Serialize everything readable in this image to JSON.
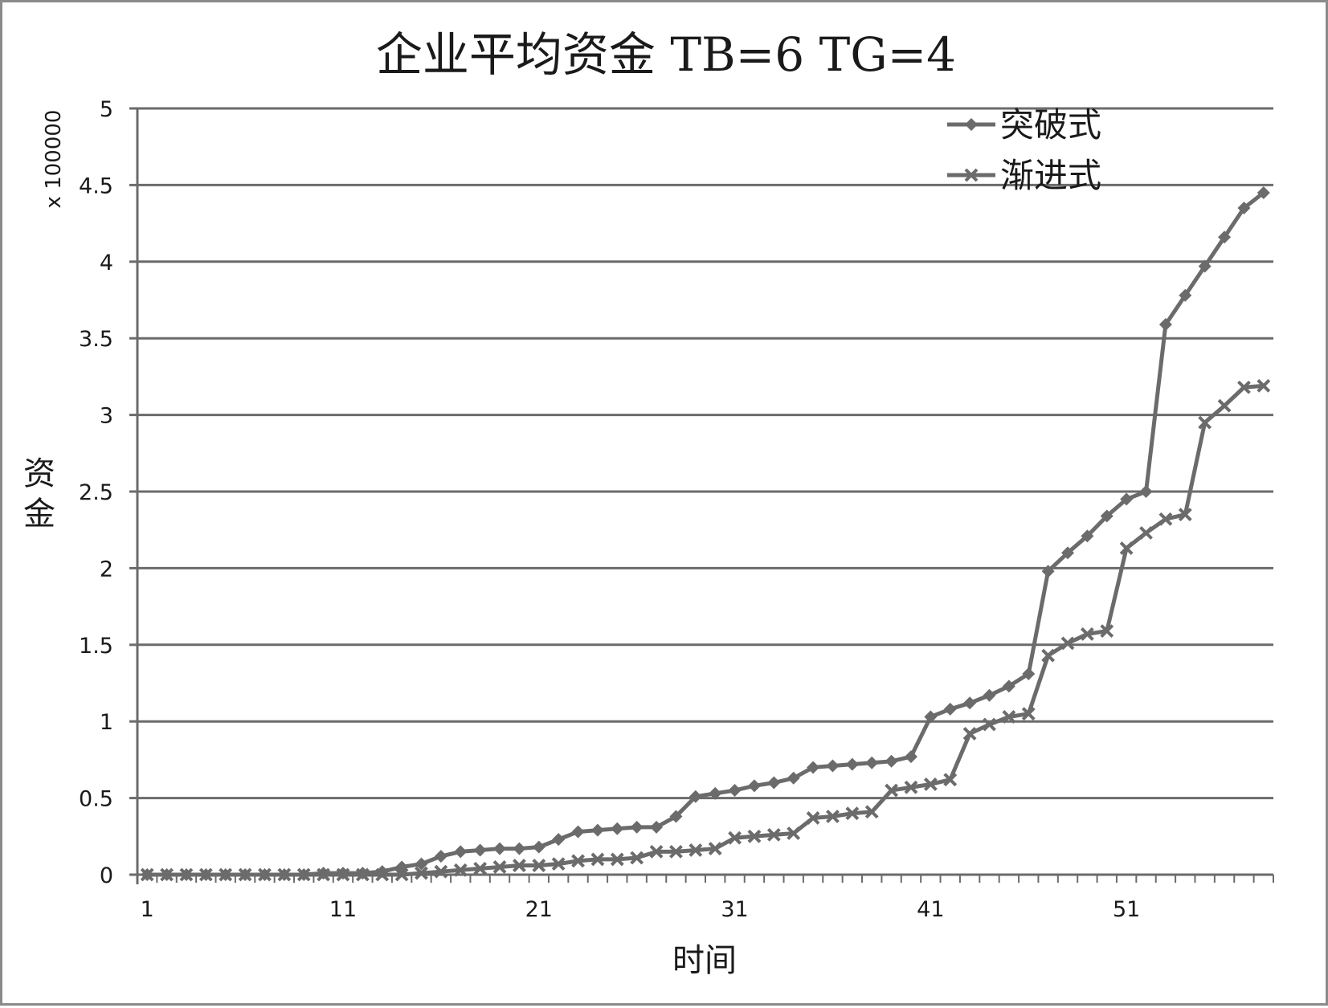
{
  "chart_data": {
    "type": "line",
    "title": "企业平均资金 TB=6 TG=4",
    "xlabel": "时间",
    "ylabel": "资金",
    "y_multiplier": "x 100000",
    "ylim": [
      0,
      5
    ],
    "y_ticks": [
      "0",
      "0.5",
      "1",
      "1.5",
      "2",
      "2.5",
      "3",
      "3.5",
      "4",
      "4.5",
      "5"
    ],
    "x_tick_labels": [
      "1",
      "11",
      "21",
      "31",
      "41",
      "51"
    ],
    "x": [
      1,
      2,
      3,
      4,
      5,
      6,
      7,
      8,
      9,
      10,
      11,
      12,
      13,
      14,
      15,
      16,
      17,
      18,
      19,
      20,
      21,
      22,
      23,
      24,
      25,
      26,
      27,
      28,
      29,
      30,
      31,
      32,
      33,
      34,
      35,
      36,
      37,
      38,
      39,
      40,
      41,
      42,
      43,
      44,
      45,
      46,
      47,
      48,
      49,
      50,
      51,
      52,
      53,
      54,
      55,
      56,
      57,
      58
    ],
    "grid": true,
    "legend_position": "top-right",
    "series_color": "#6b6b6b",
    "series": [
      {
        "name": "突破式",
        "marker": "diamond",
        "values": [
          0,
          0,
          0,
          0,
          0,
          0,
          0,
          0,
          0,
          0.01,
          0.01,
          0.01,
          0.02,
          0.05,
          0.07,
          0.12,
          0.15,
          0.16,
          0.17,
          0.17,
          0.18,
          0.23,
          0.28,
          0.29,
          0.3,
          0.31,
          0.31,
          0.38,
          0.51,
          0.53,
          0.55,
          0.58,
          0.6,
          0.63,
          0.7,
          0.71,
          0.72,
          0.73,
          0.74,
          0.77,
          1.03,
          1.08,
          1.12,
          1.17,
          1.23,
          1.31,
          1.98,
          2.1,
          2.21,
          2.34,
          2.45,
          2.5,
          3.59,
          3.78,
          3.97,
          4.16,
          4.35,
          4.45
        ]
      },
      {
        "name": "渐进式",
        "marker": "x",
        "values": [
          0,
          0,
          0,
          0,
          0,
          0,
          0,
          0,
          0,
          0,
          0,
          0,
          0,
          0,
          0.01,
          0.02,
          0.03,
          0.04,
          0.05,
          0.06,
          0.06,
          0.07,
          0.09,
          0.1,
          0.1,
          0.11,
          0.15,
          0.15,
          0.16,
          0.17,
          0.24,
          0.25,
          0.26,
          0.27,
          0.37,
          0.38,
          0.4,
          0.41,
          0.55,
          0.57,
          0.59,
          0.62,
          0.92,
          0.98,
          1.03,
          1.05,
          1.43,
          1.51,
          1.57,
          1.59,
          2.13,
          2.23,
          2.32,
          2.35,
          2.95,
          3.06,
          3.18,
          3.19
        ]
      }
    ]
  }
}
